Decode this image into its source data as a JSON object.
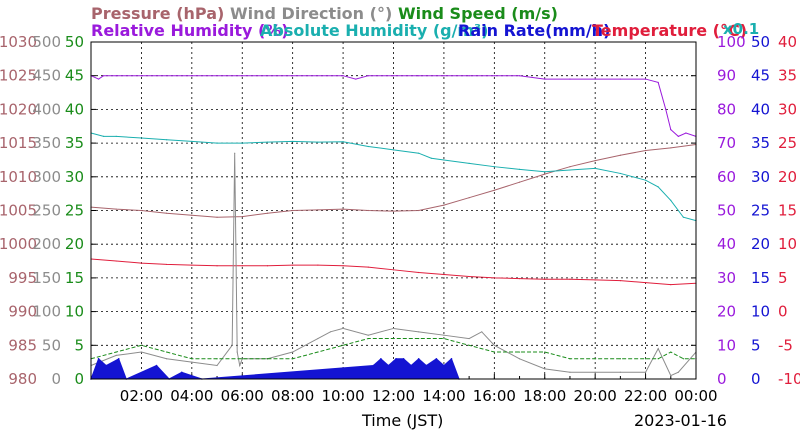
{
  "chart_data": {
    "type": "line",
    "legend": {
      "row1": [
        {
          "name": "Pressure (hPa)",
          "color": "#a8646c"
        },
        {
          "name": "Wind Direction (°)",
          "color": "#8c8c8c"
        },
        {
          "name": "Wind Speed (m/s)",
          "color": "#1a8c1a"
        }
      ],
      "row2": [
        {
          "name": "Relative Humidity (%)",
          "color": "#9a1adc"
        },
        {
          "name": "Absolute Humidity (g/m³)",
          "color": "#1aafaf"
        },
        {
          "name": "Rain Rate(mm/h)",
          "color": "#1414d2"
        },
        {
          "name": "Temperature (°C)",
          "color": "#e01e3c"
        }
      ],
      "scale_note": "x0.1"
    },
    "xlabel": "Time (JST)",
    "date_label": "2023-01-16",
    "x_ticks": [
      "02:00",
      "04:00",
      "06:00",
      "08:00",
      "10:00",
      "12:00",
      "14:00",
      "16:00",
      "18:00",
      "20:00",
      "22:00",
      "00:00"
    ],
    "x_range_hours": [
      0,
      24
    ],
    "axes": {
      "pressure": {
        "color": "#a8646c",
        "ticks": [
          "1030",
          "1025",
          "1020",
          "1015",
          "1010",
          "1005",
          "1000",
          "995",
          "990",
          "985",
          "980"
        ],
        "range": [
          980,
          1030
        ]
      },
      "wind_direction": {
        "color": "#8c8c8c",
        "ticks": [
          "500",
          "450",
          "400",
          "350",
          "300",
          "250",
          "200",
          "150",
          "100",
          "50",
          "0"
        ],
        "range": [
          0,
          500
        ]
      },
      "wind_speed": {
        "color": "#1a8c1a",
        "ticks": [
          "50",
          "45",
          "40",
          "35",
          "30",
          "25",
          "20",
          "15",
          "10",
          "5",
          "0"
        ],
        "range": [
          0,
          50
        ]
      },
      "humidity": {
        "color": "#9a1adc",
        "ticks": [
          "100",
          "90",
          "80",
          "70",
          "60",
          "50",
          "40",
          "30",
          "20",
          "10",
          "0"
        ],
        "range": [
          0,
          100
        ]
      },
      "rain_rate": {
        "color": "#1414d2",
        "ticks": [
          "50",
          "45",
          "40",
          "35",
          "30",
          "25",
          "20",
          "15",
          "10",
          "5",
          "0"
        ],
        "range": [
          0,
          50
        ]
      },
      "temperature": {
        "color": "#e01e3c",
        "ticks": [
          "40",
          "35",
          "30",
          "25",
          "20",
          "15",
          "10",
          "5",
          "0",
          "-5",
          "-10"
        ],
        "range": [
          -10,
          40
        ]
      }
    },
    "series": [
      {
        "name": "Relative Humidity (%)",
        "axis": "humidity",
        "color": "#9a1adc",
        "x": [
          0,
          0.3,
          0.5,
          1,
          2,
          4,
          6,
          8,
          10,
          10.5,
          11,
          12,
          13,
          14,
          15,
          16,
          17,
          18,
          19,
          20,
          21,
          22,
          22.5,
          22.8,
          23,
          23.3,
          23.6,
          24
        ],
        "y": [
          90,
          89,
          90,
          90,
          90,
          90,
          90,
          90,
          90,
          89,
          90,
          90,
          90,
          90,
          90,
          90,
          90,
          89,
          89,
          89,
          89,
          89,
          88,
          80,
          74,
          72,
          73,
          72
        ]
      },
      {
        "name": "Pressure (hPa)",
        "axis": "pressure",
        "color": "#a8646c",
        "x": [
          0,
          1,
          2,
          3,
          4,
          5,
          6,
          7,
          8,
          9,
          10,
          11,
          12,
          13,
          14,
          15,
          16,
          17,
          18,
          19,
          20,
          21,
          22,
          23,
          24
        ],
        "y": [
          1005.5,
          1005.2,
          1005.0,
          1004.6,
          1004.3,
          1004.0,
          1004.1,
          1004.6,
          1005.0,
          1005.1,
          1005.2,
          1005.0,
          1004.9,
          1005.0,
          1005.8,
          1006.9,
          1008.0,
          1009.2,
          1010.4,
          1011.5,
          1012.4,
          1013.2,
          1013.9,
          1014.3,
          1014.8
        ]
      },
      {
        "name": "Absolute Humidity (g/m³)",
        "axis": "humidity",
        "color": "#1aafaf",
        "x": [
          0,
          0.5,
          1,
          2,
          3,
          4,
          5,
          6,
          7,
          8,
          9,
          10,
          11,
          12,
          13,
          13.5,
          14,
          15,
          16,
          17,
          18,
          19,
          20,
          21,
          21.5,
          22,
          22.5,
          23,
          23.5,
          24
        ],
        "y": [
          73,
          72,
          72,
          71.5,
          71,
          70.5,
          70,
          70,
          70.3,
          70.5,
          70.3,
          70.4,
          69,
          68,
          67,
          65.5,
          65,
          64,
          63,
          62.2,
          61.5,
          62,
          62.5,
          61,
          60,
          59,
          57,
          53,
          48,
          47
        ]
      },
      {
        "name": "Temperature (°C)",
        "axis": "temperature",
        "color": "#e01e3c",
        "x": [
          0,
          1,
          2,
          3,
          4,
          5,
          6,
          7,
          8,
          9,
          10,
          11,
          12,
          13,
          14,
          15,
          16,
          17,
          18,
          19,
          20,
          21,
          22,
          23,
          24
        ],
        "y": [
          7.8,
          7.5,
          7.2,
          7.0,
          6.9,
          6.8,
          6.8,
          6.8,
          6.9,
          6.9,
          6.8,
          6.6,
          6.2,
          5.8,
          5.5,
          5.2,
          5.0,
          4.9,
          4.8,
          4.8,
          4.7,
          4.6,
          4.3,
          4.0,
          4.2
        ]
      },
      {
        "name": "Wind Direction (°)",
        "axis": "wind_direction",
        "color": "#8c8c8c",
        "x": [
          0,
          1,
          2,
          3,
          4,
          5,
          5.6,
          5.7,
          5.8,
          5.9,
          6,
          7,
          8,
          9,
          9.5,
          10,
          11,
          12,
          13,
          14,
          15,
          15.5,
          16,
          17,
          18,
          19,
          20,
          21,
          22,
          22.5,
          23,
          23.3,
          24
        ],
        "y": [
          20,
          35,
          40,
          30,
          25,
          20,
          50,
          335,
          40,
          20,
          30,
          30,
          40,
          60,
          70,
          75,
          65,
          75,
          70,
          65,
          60,
          70,
          50,
          30,
          15,
          10,
          10,
          10,
          10,
          45,
          5,
          10,
          40
        ]
      },
      {
        "name": "Wind Speed (m/s)",
        "axis": "wind_speed",
        "color": "#1a8c1a",
        "x": [
          0,
          1,
          2,
          3,
          4,
          5,
          6,
          7,
          8,
          9,
          10,
          11,
          12,
          13,
          14,
          15,
          16,
          17,
          18,
          19,
          20,
          21,
          22,
          22.5,
          23,
          23.5,
          24
        ],
        "y": [
          3,
          4,
          5,
          4,
          3,
          3,
          3,
          3,
          3,
          4,
          5,
          6,
          6,
          6,
          6,
          5,
          4,
          4,
          4,
          3,
          3,
          3,
          3,
          3,
          4,
          3,
          3
        ]
      },
      {
        "name": "Rain Rate(mm/h)",
        "axis": "rain_rate",
        "color": "#1414d2",
        "x": [
          0,
          0.3,
          0.6,
          1.1,
          1.4,
          2.6,
          3.1,
          3.6,
          4.4,
          11.2,
          11.5,
          11.8,
          12.1,
          12.4,
          12.7,
          13.0,
          13.3,
          13.7,
          14.0,
          14.3,
          14.6
        ],
        "y": [
          0,
          3,
          2,
          3,
          0,
          2,
          0,
          1,
          0,
          2,
          3,
          2,
          3,
          3,
          2,
          3,
          2,
          3,
          2,
          3,
          0
        ]
      }
    ]
  }
}
